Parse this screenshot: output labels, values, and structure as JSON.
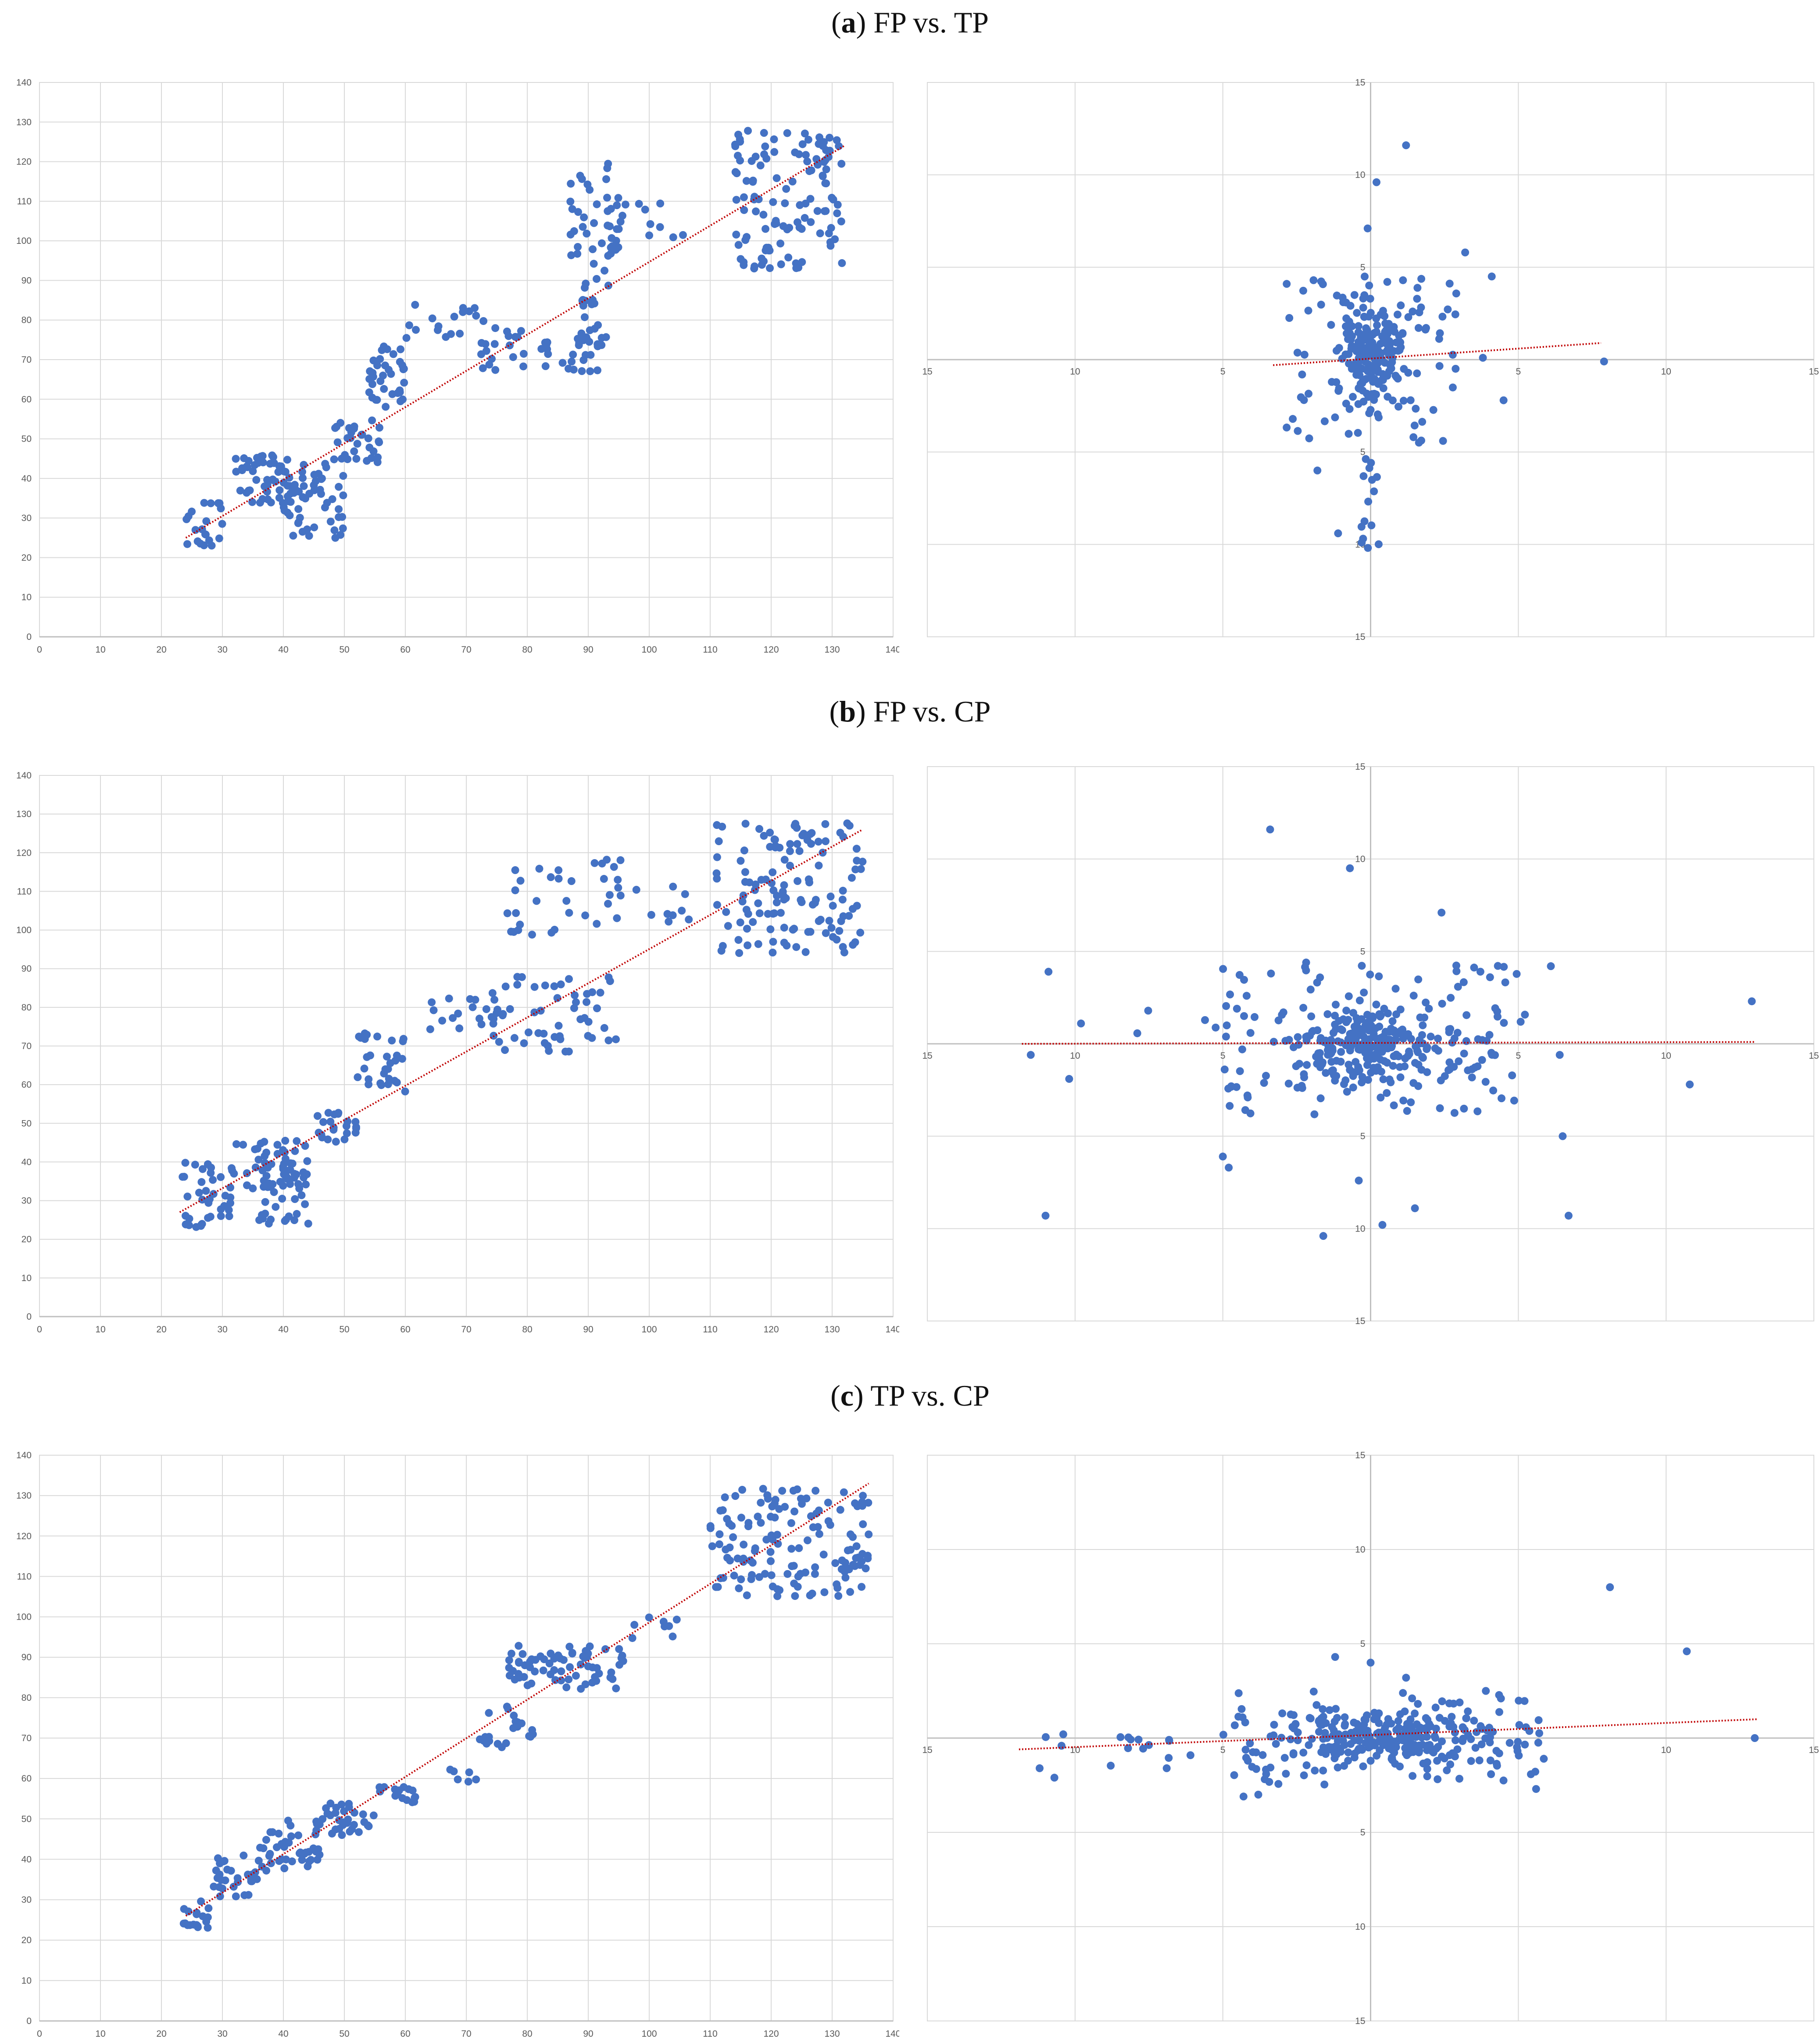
{
  "panels": [
    {
      "letter": "a",
      "label": "FP vs. TP"
    },
    {
      "letter": "b",
      "label": "FP vs. CP"
    },
    {
      "letter": "c",
      "label": "TP vs. CP"
    }
  ],
  "colors": {
    "point": "#4472C4",
    "trend": "#C00000",
    "grid": "#D9D9D9",
    "axis": "#BFBFBF"
  },
  "chart_data": [
    {
      "id": "a-left",
      "panel": "a",
      "type": "scatter",
      "title": "",
      "xlabel": "",
      "ylabel": "",
      "xlim": [
        0,
        140
      ],
      "ylim": [
        0,
        140
      ],
      "xstep": 10,
      "ystep": 10,
      "trend": {
        "x": [
          24,
          132
        ],
        "y": [
          25,
          124
        ]
      },
      "clusters": [
        {
          "x": [
            24,
            30
          ],
          "y": [
            22,
            34
          ],
          "n": 22
        },
        {
          "x": [
            32,
            42
          ],
          "y": [
            33,
            46
          ],
          "n": 50
        },
        {
          "x": [
            40,
            50
          ],
          "y": [
            24,
            45
          ],
          "n": 55
        },
        {
          "x": [
            48,
            56
          ],
          "y": [
            44,
            56
          ],
          "n": 30
        },
        {
          "x": [
            54,
            60
          ],
          "y": [
            58,
            74
          ],
          "n": 35
        },
        {
          "x": [
            60,
            73
          ],
          "y": [
            74,
            84
          ],
          "n": 18
        },
        {
          "x": [
            72,
            82
          ],
          "y": [
            67,
            78
          ],
          "n": 18
        },
        {
          "x": [
            82,
            92
          ],
          "y": [
            67,
            78
          ],
          "n": 25
        },
        {
          "x": [
            87,
            96
          ],
          "y": [
            96,
            120
          ],
          "n": 40
        },
        {
          "x": [
            89,
            94
          ],
          "y": [
            72,
            98
          ],
          "n": 25
        },
        {
          "x": [
            94,
            110
          ],
          "y": [
            100,
            112
          ],
          "n": 10
        },
        {
          "x": [
            114,
            132
          ],
          "y": [
            93,
            128
          ],
          "n": 120
        }
      ]
    },
    {
      "id": "a-right",
      "panel": "a",
      "type": "scatter",
      "title": "",
      "xlabel": "",
      "ylabel": "",
      "xlim": [
        -15,
        15
      ],
      "ylim": [
        -15,
        15
      ],
      "xstep": 5,
      "ystep": 5,
      "trend": {
        "x": [
          -3.3,
          7.8
        ],
        "y": [
          -0.3,
          0.9
        ]
      },
      "clusters": [
        {
          "x": [
            -1.0,
            1.0
          ],
          "y": [
            -2.5,
            3.0
          ],
          "n": 170,
          "dist": "normal"
        },
        {
          "x": [
            -3.0,
            3.0
          ],
          "y": [
            -4.5,
            4.5
          ],
          "n": 90
        },
        {
          "x": [
            -0.4,
            0.3
          ],
          "y": [
            -10.5,
            -5.0
          ],
          "n": 14
        }
      ],
      "points": [
        [
          1.2,
          11.6
        ],
        [
          0.2,
          9.6
        ],
        [
          -0.1,
          7.1
        ],
        [
          3.2,
          5.8
        ],
        [
          4.1,
          4.5
        ],
        [
          3.8,
          0.1
        ],
        [
          4.5,
          -2.2
        ],
        [
          7.9,
          -0.1
        ],
        [
          -1.8,
          -6.0
        ],
        [
          -1.1,
          -9.4
        ],
        [
          -0.3,
          -9.9
        ]
      ]
    },
    {
      "id": "b-left",
      "panel": "b",
      "type": "scatter",
      "title": "",
      "xlabel": "",
      "ylabel": "",
      "xlim": [
        0,
        140
      ],
      "ylim": [
        0,
        140
      ],
      "xstep": 10,
      "ystep": 10,
      "trend": {
        "x": [
          23,
          135
        ],
        "y": [
          27,
          126
        ]
      },
      "clusters": [
        {
          "x": [
            23,
            32
          ],
          "y": [
            23,
            42
          ],
          "n": 40
        },
        {
          "x": [
            32,
            44
          ],
          "y": [
            33,
            46
          ],
          "n": 45
        },
        {
          "x": [
            36,
            45
          ],
          "y": [
            24,
            38
          ],
          "n": 35
        },
        {
          "x": [
            45,
            52
          ],
          "y": [
            45,
            53
          ],
          "n": 22
        },
        {
          "x": [
            52,
            60
          ],
          "y": [
            58,
            74
          ],
          "n": 30
        },
        {
          "x": [
            64,
            76
          ],
          "y": [
            74,
            84
          ],
          "n": 16
        },
        {
          "x": [
            74,
            95
          ],
          "y": [
            68,
            88
          ],
          "n": 55
        },
        {
          "x": [
            76,
            98
          ],
          "y": [
            96,
            120
          ],
          "n": 35
        },
        {
          "x": [
            100,
            108
          ],
          "y": [
            102,
            112
          ],
          "n": 8
        },
        {
          "x": [
            110,
            135
          ],
          "y": [
            94,
            128
          ],
          "n": 130
        }
      ]
    },
    {
      "id": "b-right",
      "panel": "b",
      "type": "scatter",
      "title": "",
      "xlabel": "",
      "ylabel": "",
      "xlim": [
        -15,
        15
      ],
      "ylim": [
        -15,
        15
      ],
      "xstep": 5,
      "ystep": 5,
      "trend": {
        "x": [
          -11.8,
          13.0
        ],
        "y": [
          0.0,
          0.1
        ]
      },
      "clusters": [
        {
          "x": [
            -2.2,
            2.2
          ],
          "y": [
            -1.8,
            1.8
          ],
          "n": 200,
          "dist": "normal"
        },
        {
          "x": [
            -5.0,
            5.0
          ],
          "y": [
            -4.0,
            4.5
          ],
          "n": 140
        },
        {
          "x": [
            -8.0,
            8.0
          ],
          "y": [
            -2.0,
            2.0
          ],
          "n": 25
        }
      ],
      "points": [
        [
          -3.4,
          11.6
        ],
        [
          -0.7,
          9.5
        ],
        [
          -10.9,
          3.9
        ],
        [
          -10.2,
          -1.9
        ],
        [
          -11.5,
          -0.6
        ],
        [
          -11.0,
          -9.3
        ],
        [
          -9.8,
          1.1
        ],
        [
          12.9,
          2.3
        ],
        [
          10.8,
          -2.2
        ],
        [
          6.5,
          -5.0
        ],
        [
          6.7,
          -9.3
        ],
        [
          1.5,
          -8.9
        ],
        [
          0.4,
          -9.8
        ],
        [
          -1.6,
          -10.4
        ],
        [
          2.4,
          7.1
        ],
        [
          6.1,
          4.2
        ],
        [
          6.4,
          -0.6
        ],
        [
          -4.8,
          -6.7
        ],
        [
          -5.0,
          -6.1
        ],
        [
          -0.4,
          -7.4
        ]
      ]
    },
    {
      "id": "c-left",
      "panel": "c",
      "type": "scatter",
      "title": "",
      "xlabel": "",
      "ylabel": "",
      "xlim": [
        0,
        140
      ],
      "ylim": [
        0,
        140
      ],
      "xstep": 10,
      "ystep": 10,
      "trend": {
        "x": [
          24,
          136
        ],
        "y": [
          26,
          133
        ]
      },
      "clusters": [
        {
          "x": [
            23,
            28
          ],
          "y": [
            23,
            30
          ],
          "n": 18
        },
        {
          "x": [
            28,
            36
          ],
          "y": [
            30,
            41
          ],
          "n": 30
        },
        {
          "x": [
            36,
            46
          ],
          "y": [
            37,
            50
          ],
          "n": 45
        },
        {
          "x": [
            46,
            55
          ],
          "y": [
            46,
            54
          ],
          "n": 30
        },
        {
          "x": [
            55,
            62
          ],
          "y": [
            54,
            58
          ],
          "n": 16
        },
        {
          "x": [
            63,
            72
          ],
          "y": [
            58,
            63
          ],
          "n": 6
        },
        {
          "x": [
            72,
            81
          ],
          "y": [
            67,
            78
          ],
          "n": 22
        },
        {
          "x": [
            77,
            96
          ],
          "y": [
            82,
            93
          ],
          "n": 70
        },
        {
          "x": [
            96,
            106
          ],
          "y": [
            94,
            100
          ],
          "n": 8
        },
        {
          "x": [
            110,
            136
          ],
          "y": [
            105,
            132
          ],
          "n": 140
        }
      ]
    },
    {
      "id": "c-right",
      "panel": "c",
      "type": "scatter",
      "title": "",
      "xlabel": "",
      "ylabel": "",
      "xlim": [
        -15,
        15
      ],
      "ylim": [
        -15,
        15
      ],
      "xstep": 5,
      "ystep": 5,
      "trend": {
        "x": [
          -11.9,
          13.1
        ],
        "y": [
          -0.6,
          1.0
        ]
      },
      "clusters": [
        {
          "x": [
            -3.0,
            4.0
          ],
          "y": [
            -1.2,
            1.2
          ],
          "n": 220,
          "dist": "normal"
        },
        {
          "x": [
            -5.0,
            6.0
          ],
          "y": [
            -2.5,
            2.5
          ],
          "n": 120
        },
        {
          "x": [
            -11.5,
            -6.0
          ],
          "y": [
            -1.5,
            0.2
          ],
          "n": 14
        }
      ],
      "points": [
        [
          8.1,
          8.0
        ],
        [
          10.7,
          4.6
        ],
        [
          13.0,
          0.0
        ],
        [
          -11.2,
          -1.6
        ],
        [
          -10.7,
          -2.1
        ],
        [
          -10.4,
          0.2
        ],
        [
          -6.9,
          -1.6
        ],
        [
          -4.3,
          -3.1
        ],
        [
          -3.8,
          -3.0
        ],
        [
          5.6,
          -2.7
        ],
        [
          1.2,
          3.2
        ],
        [
          0.0,
          4.0
        ],
        [
          -1.2,
          4.3
        ],
        [
          3.9,
          2.5
        ]
      ]
    }
  ]
}
